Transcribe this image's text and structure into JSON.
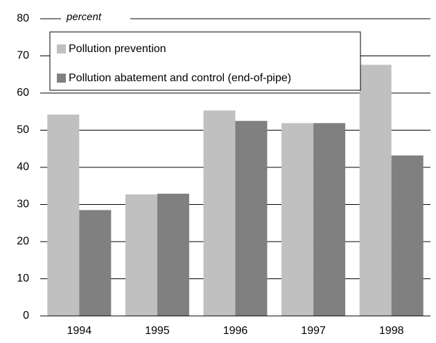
{
  "chart_data": {
    "type": "bar",
    "y_label": "percent",
    "categories": [
      "1994",
      "1995",
      "1996",
      "1997",
      "1998"
    ],
    "series": [
      {
        "name": "Pollution prevention",
        "color": "#c0c0c0",
        "values": [
          54.2,
          32.7,
          55.3,
          51.9,
          67.6
        ]
      },
      {
        "name": "Pollution abatement and control (end-of-pipe)",
        "color": "#808080",
        "values": [
          28.5,
          32.9,
          52.5,
          51.9,
          43.2
        ]
      }
    ],
    "ylim": [
      0,
      80
    ],
    "yticks": [
      0,
      10,
      20,
      30,
      40,
      50,
      60,
      70,
      80
    ],
    "grid": true,
    "legend": "top-left"
  }
}
